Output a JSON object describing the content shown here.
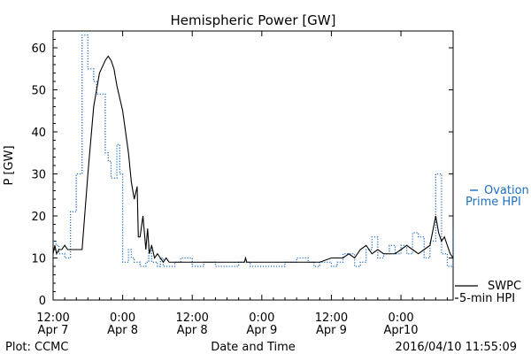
{
  "chart_data": {
    "type": "line",
    "title": "Hemispheric Power [GW]",
    "xlabel": "Date and Time",
    "ylabel": "P [GW]",
    "ylim": [
      0,
      64
    ],
    "xlim": [
      0,
      69
    ],
    "x_unit": "hours since 2016-04-07 12:00",
    "yticks": [
      0,
      10,
      20,
      30,
      40,
      50,
      60
    ],
    "xticks": [
      {
        "x": 0,
        "line1": "12:00",
        "line2": "Apr 7"
      },
      {
        "x": 12,
        "line1": "0:00",
        "line2": "Apr 8"
      },
      {
        "x": 24,
        "line1": "12:00",
        "line2": "Apr 8"
      },
      {
        "x": 36,
        "line1": "0:00",
        "line2": "Apr 9"
      },
      {
        "x": 48,
        "line1": "12:00",
        "line2": "Apr 9"
      },
      {
        "x": 60,
        "line1": "0:00",
        "line2": "Apr10"
      }
    ],
    "grid": false,
    "legend_position": "right",
    "footer_left": "Plot: CCMC",
    "footer_right": "2016/04/10 11:55:09",
    "series": [
      {
        "name": "Ovation Prime HPI",
        "legend_lines": [
          "Ovation",
          "Prime HPI"
        ],
        "color": "#1f6fc2",
        "style": "dotted-step",
        "x": [
          0,
          0.5,
          1,
          2,
          3,
          4,
          5,
          6,
          7,
          7.5,
          8,
          9,
          9.5,
          10,
          11,
          11.5,
          12,
          13,
          13.5,
          14,
          15,
          16,
          16.5,
          17,
          18,
          18.5,
          19,
          20,
          21,
          22,
          24,
          25,
          26,
          28,
          30,
          32,
          34,
          36,
          38,
          40,
          42,
          44,
          45,
          46,
          48,
          49,
          50,
          52,
          53,
          54,
          55,
          56,
          57,
          58,
          59,
          60,
          61,
          62,
          63,
          64,
          65,
          66,
          67,
          68,
          69
        ],
        "y": [
          14,
          13,
          11,
          10,
          21,
          30,
          63,
          55,
          52,
          49,
          49,
          35,
          33,
          29,
          37,
          30,
          9,
          12,
          10,
          9,
          8,
          9,
          13,
          9,
          8,
          10,
          8,
          8,
          9,
          10,
          8,
          8,
          9,
          8,
          8,
          9,
          8,
          8,
          8,
          9,
          10,
          9,
          8,
          9,
          8,
          9,
          11,
          8,
          9,
          12,
          15,
          10,
          11,
          13,
          11,
          13,
          11,
          16,
          15,
          10,
          14,
          30,
          11,
          8,
          17
        ]
      },
      {
        "name": "5-min HPI",
        "legend_lines": [
          "SWPC",
          "5-min HPI"
        ],
        "color": "#000000",
        "style": "solid",
        "x": [
          0,
          0.3,
          0.6,
          1,
          1.5,
          2,
          2.5,
          3,
          4,
          5,
          6,
          7,
          8,
          9,
          9.5,
          10,
          10.5,
          11,
          12,
          13,
          13.5,
          14,
          14.5,
          14.7,
          15,
          15.5,
          16,
          16.3,
          16.6,
          17,
          17.5,
          18,
          18.5,
          19,
          19.5,
          20,
          22,
          24,
          26,
          28,
          30,
          32,
          33,
          33.2,
          33.4,
          34,
          36,
          38,
          40,
          42,
          44,
          46,
          48,
          49,
          50,
          51,
          52,
          53,
          54,
          55,
          56,
          57,
          58,
          59,
          60,
          61,
          62,
          63,
          64,
          65,
          66,
          66.5,
          67,
          67.5,
          68,
          68.5,
          69
        ],
        "y": [
          11,
          13,
          11,
          12,
          12,
          13,
          12,
          12,
          12,
          12,
          30,
          46,
          54,
          57,
          58,
          57,
          55,
          51,
          45,
          35,
          28,
          24,
          27,
          15,
          15,
          20,
          12,
          17,
          11,
          13,
          10,
          11,
          10,
          9,
          10,
          9,
          9,
          9,
          9,
          9,
          9,
          9,
          9,
          10,
          9,
          9,
          9,
          9,
          9,
          9,
          9,
          9,
          10,
          10,
          10,
          11,
          10,
          12,
          13,
          11,
          12,
          11,
          11,
          11,
          12,
          13,
          12,
          11,
          12,
          13,
          20,
          16,
          14,
          15,
          13,
          11,
          10
        ]
      }
    ]
  }
}
